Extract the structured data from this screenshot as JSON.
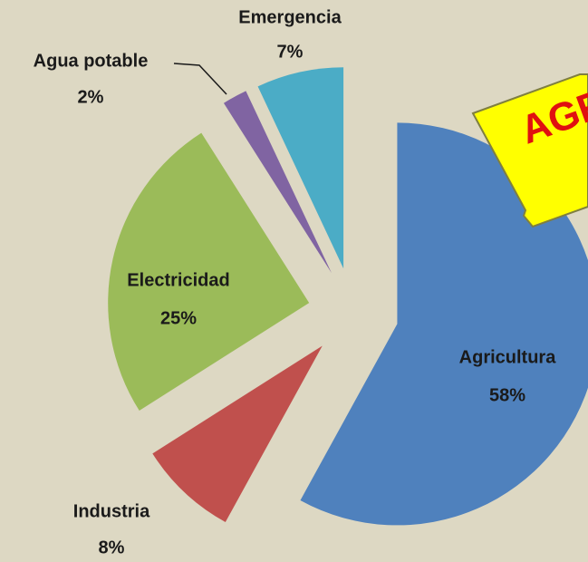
{
  "chart_data": {
    "type": "pie",
    "categories": [
      "Agricultura",
      "Industria",
      "Electricidad",
      "Agua potable",
      "Emergencia"
    ],
    "values": [
      58,
      8,
      25,
      2,
      7
    ],
    "value_labels": [
      "58%",
      "8%",
      "25%",
      "2%",
      "7%"
    ],
    "colors": [
      "#4f81bd",
      "#c0504d",
      "#9bbb59",
      "#8064a2",
      "#4bacc6"
    ],
    "annotation": "AGR"
  }
}
